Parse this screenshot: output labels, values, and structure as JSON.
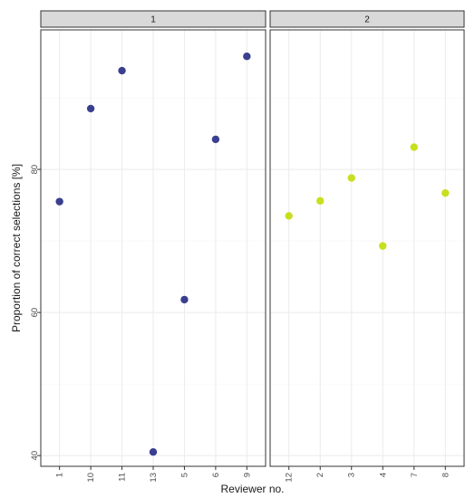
{
  "chart_data": {
    "type": "scatter",
    "title": "",
    "xlabel": "Reviewer no.",
    "ylabel": "Proportion of correct selections [%]",
    "ylim": [
      38.5,
      99.5
    ],
    "yticks": [
      40,
      60,
      80
    ],
    "grid": true,
    "legend": "none",
    "facets": [
      {
        "label": "1",
        "color": "#3b3f8f",
        "categories": [
          "1",
          "10",
          "11",
          "13",
          "5",
          "6",
          "9"
        ],
        "values": [
          75.5,
          88.5,
          93.8,
          40.5,
          61.8,
          84.2,
          95.8
        ]
      },
      {
        "label": "2",
        "color": "#c8df1f",
        "categories": [
          "12",
          "2",
          "3",
          "4",
          "7",
          "8"
        ],
        "values": [
          73.5,
          75.6,
          78.8,
          69.3,
          83.1,
          76.7
        ]
      }
    ]
  }
}
